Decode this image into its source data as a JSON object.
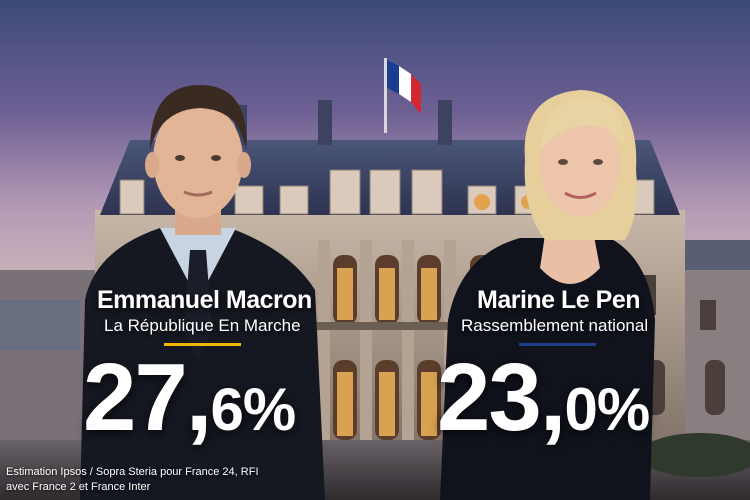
{
  "candidates": [
    {
      "name": "Emmanuel Macron",
      "party": "La République En Marche",
      "percent_int": "27",
      "percent_sep": ",",
      "percent_dec": "6%",
      "percent_value": 27.6,
      "bar_color": "#f2b705"
    },
    {
      "name": "Marine Le Pen",
      "party": "Rassemblement national",
      "percent_int": "23",
      "percent_sep": ",",
      "percent_dec": "0%",
      "percent_value": 23.0,
      "bar_color": "#1f3f8a"
    }
  ],
  "source": {
    "line1": "Estimation Ipsos / Sopra Steria pour France 24, RFI",
    "line2": "avec France 2 et France Inter"
  },
  "colors": {
    "flag_blue": "#1a3d8f",
    "flag_white": "#ffffff",
    "flag_red": "#d3262e"
  }
}
